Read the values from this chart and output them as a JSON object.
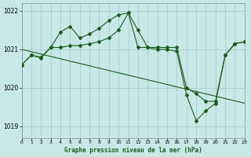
{
  "title": "Graphe pression niveau de la mer (hPa)",
  "bg_color": "#c8e8e8",
  "grid_color": "#a0c8c0",
  "line_color": "#1a5c1a",
  "xlim": [
    0,
    23
  ],
  "ylim": [
    1018.7,
    1022.2
  ],
  "yticks": [
    1019,
    1020,
    1021,
    1022
  ],
  "xticks": [
    0,
    1,
    2,
    3,
    4,
    5,
    6,
    7,
    8,
    9,
    10,
    11,
    12,
    13,
    14,
    15,
    16,
    17,
    18,
    19,
    20,
    21,
    22,
    23
  ],
  "series1_x": [
    0,
    1,
    2,
    3,
    4,
    5,
    6,
    7,
    8,
    9,
    10,
    11,
    12,
    13,
    14,
    15,
    16,
    17,
    18,
    19,
    20,
    21,
    22,
    23
  ],
  "series1_y": [
    1020.6,
    1020.85,
    1020.8,
    1021.05,
    1021.45,
    1021.6,
    1021.3,
    1021.4,
    1021.55,
    1021.75,
    1021.9,
    1021.95,
    1021.5,
    1021.05,
    1021.05,
    1021.05,
    1021.05,
    1020.0,
    1019.85,
    1019.65,
    1019.65,
    1020.85,
    1021.15,
    1021.2
  ],
  "series2_x": [
    0,
    1,
    2,
    3,
    4,
    5,
    6,
    7,
    8,
    9,
    10,
    11,
    12,
    13,
    14,
    15,
    16,
    17,
    18,
    19,
    20,
    21,
    22,
    23
  ],
  "series2_y": [
    1020.6,
    1020.85,
    1020.78,
    1021.05,
    1021.05,
    1021.1,
    1021.1,
    1021.15,
    1021.2,
    1021.3,
    1021.5,
    1021.95,
    1021.05,
    1021.05,
    1021.0,
    1021.0,
    1020.95,
    1019.82,
    1019.15,
    1019.4,
    1019.6,
    1020.85,
    1021.15,
    1021.2
  ]
}
